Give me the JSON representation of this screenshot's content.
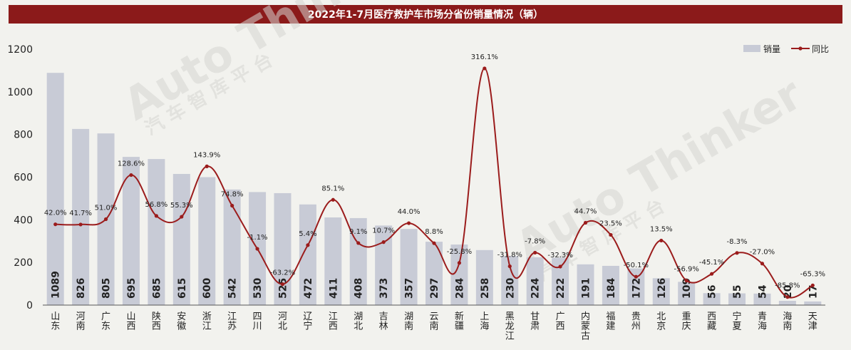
{
  "chart_data": {
    "type": "bar",
    "title": "2022年1-7月医疗救护车市场分省份销量情况（辆）",
    "categories": [
      "山东",
      "河南",
      "广东",
      "山西",
      "陕西",
      "安徽",
      "浙江",
      "江苏",
      "四川",
      "河北",
      "辽宁",
      "江西",
      "湖北",
      "吉林",
      "湖南",
      "云南",
      "新疆",
      "上海",
      "黑龙江",
      "甘肃",
      "广西",
      "内蒙古",
      "福建",
      "贵州",
      "北京",
      "重庆",
      "西藏",
      "宁夏",
      "青海",
      "海南",
      "天津"
    ],
    "series": [
      {
        "name": "销量",
        "type": "bar",
        "color": "#c8cbd6",
        "values": [
          1089,
          826,
          805,
          695,
          685,
          615,
          600,
          542,
          530,
          525,
          472,
          411,
          408,
          373,
          357,
          297,
          284,
          258,
          230,
          224,
          222,
          191,
          184,
          172,
          126,
          109,
          56,
          55,
          54,
          20,
          17
        ]
      },
      {
        "name": "同比",
        "type": "line",
        "color": "#9b1c1c",
        "values": [
          42.0,
          41.7,
          51.0,
          128.6,
          56.8,
          55.3,
          143.9,
          74.8,
          -1.1,
          -63.2,
          5.4,
          85.1,
          9.1,
          10.7,
          44.0,
          8.8,
          -25.8,
          316.1,
          -31.8,
          -7.8,
          -32.3,
          44.7,
          23.5,
          -50.1,
          13.5,
          -56.9,
          -45.1,
          -8.3,
          -27.0,
          -85.8,
          -65.3
        ],
        "labels": [
          "42.0%",
          "41.7%",
          "51.0%",
          "128.6%",
          "56.8%",
          "55.3%",
          "143.9%",
          "74.8%",
          "-1.1%",
          "-63.2%",
          "5.4%",
          "85.1%",
          "9.1%",
          "10.7%",
          "44.0%",
          "8.8%",
          "-25.8%",
          "316.1%",
          "-31.8%",
          "-7.8%",
          "-32.3%",
          "44.7%",
          "23.5%",
          "-50.1%",
          "13.5%",
          "-56.9%",
          "-45.1%",
          "-8.3%",
          "-27.0%",
          "-85.8%",
          "-65.3%"
        ]
      }
    ],
    "ylim": [
      0,
      1200
    ],
    "yticks": [
      "0",
      "200",
      "400",
      "600",
      "800",
      "1000",
      "1200"
    ],
    "legend": "top-right",
    "grid": false
  },
  "watermark": {
    "brand": "Auto Thinker",
    "cn": "汽 车 智 库 平 台"
  }
}
